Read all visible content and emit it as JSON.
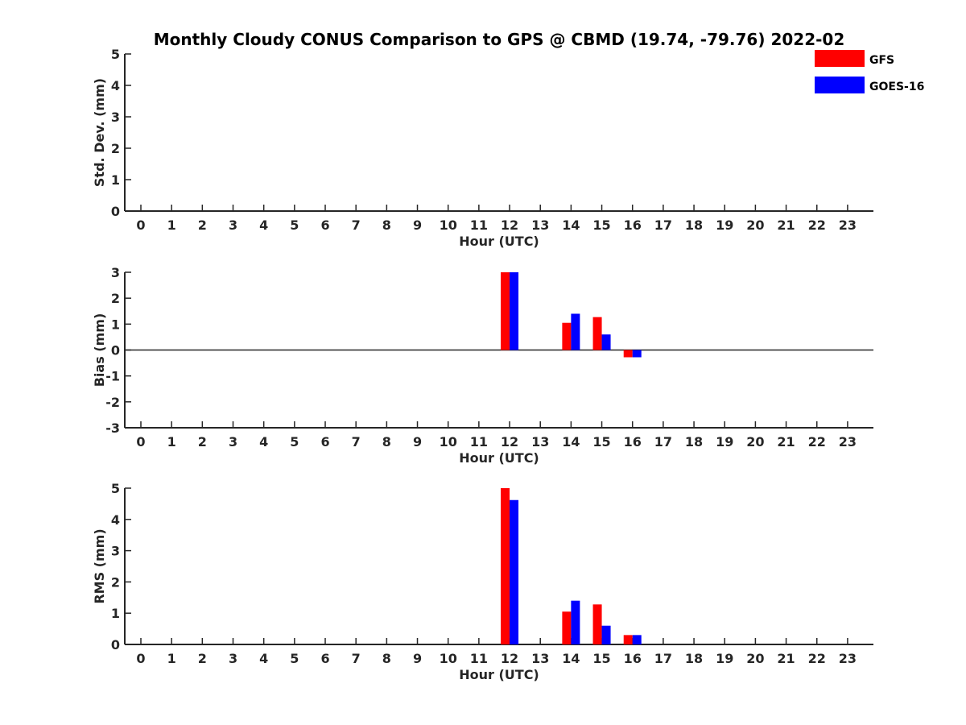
{
  "title": "Monthly Cloudy CONUS Comparison to GPS @ CBMD (19.74, -79.76) 2022-02",
  "legend": [
    {
      "label": "GFS",
      "color": "#ff0000"
    },
    {
      "label": "GOES-16",
      "color": "#0000ff"
    }
  ],
  "chart_data": [
    {
      "type": "bar",
      "title": "Monthly Cloudy CONUS Comparison to GPS @ CBMD (19.74, -79.76) 2022-02",
      "xlabel": "Hour (UTC)",
      "ylabel": "Std. Dev. (mm)",
      "categories": [
        "0",
        "1",
        "2",
        "3",
        "4",
        "5",
        "6",
        "7",
        "8",
        "9",
        "10",
        "11",
        "12",
        "13",
        "14",
        "15",
        "16",
        "17",
        "18",
        "19",
        "20",
        "21",
        "22",
        "23"
      ],
      "ylim": [
        0,
        5
      ],
      "yticks": [
        "0",
        "1",
        "2",
        "3",
        "4",
        "5"
      ],
      "zero_line": false,
      "series": [
        {
          "name": "GFS",
          "color": "#ff0000",
          "values": [
            null,
            null,
            null,
            null,
            null,
            null,
            null,
            null,
            null,
            null,
            null,
            null,
            null,
            null,
            null,
            null,
            null,
            null,
            null,
            null,
            null,
            null,
            null,
            null
          ]
        },
        {
          "name": "GOES-16",
          "color": "#0000ff",
          "values": [
            null,
            null,
            null,
            null,
            null,
            null,
            null,
            null,
            null,
            null,
            null,
            null,
            null,
            null,
            null,
            null,
            null,
            null,
            null,
            null,
            null,
            null,
            null,
            null
          ]
        }
      ],
      "legend": "top-right",
      "grid": false
    },
    {
      "type": "bar",
      "title": "",
      "xlabel": "Hour (UTC)",
      "ylabel": "Bias (mm)",
      "categories": [
        "0",
        "1",
        "2",
        "3",
        "4",
        "5",
        "6",
        "7",
        "8",
        "9",
        "10",
        "11",
        "12",
        "13",
        "14",
        "15",
        "16",
        "17",
        "18",
        "19",
        "20",
        "21",
        "22",
        "23"
      ],
      "ylim": [
        -3,
        3
      ],
      "yticks": [
        "-3",
        "-2",
        "-1",
        "0",
        "1",
        "2",
        "3"
      ],
      "zero_line": true,
      "series": [
        {
          "name": "GFS",
          "color": "#ff0000",
          "values": [
            null,
            null,
            null,
            null,
            null,
            null,
            null,
            null,
            null,
            null,
            null,
            null,
            3.0,
            null,
            1.05,
            1.27,
            -0.28,
            null,
            null,
            null,
            null,
            null,
            null,
            null
          ]
        },
        {
          "name": "GOES-16",
          "color": "#0000ff",
          "values": [
            null,
            null,
            null,
            null,
            null,
            null,
            null,
            null,
            null,
            null,
            null,
            null,
            3.0,
            null,
            1.4,
            0.6,
            -0.28,
            null,
            null,
            null,
            null,
            null,
            null,
            null
          ]
        }
      ],
      "grid": false
    },
    {
      "type": "bar",
      "title": "",
      "xlabel": "Hour (UTC)",
      "ylabel": "RMS (mm)",
      "categories": [
        "0",
        "1",
        "2",
        "3",
        "4",
        "5",
        "6",
        "7",
        "8",
        "9",
        "10",
        "11",
        "12",
        "13",
        "14",
        "15",
        "16",
        "17",
        "18",
        "19",
        "20",
        "21",
        "22",
        "23"
      ],
      "ylim": [
        0,
        5
      ],
      "yticks": [
        "0",
        "1",
        "2",
        "3",
        "4",
        "5"
      ],
      "zero_line": false,
      "series": [
        {
          "name": "GFS",
          "color": "#ff0000",
          "values": [
            null,
            null,
            null,
            null,
            null,
            null,
            null,
            null,
            null,
            null,
            null,
            null,
            5.0,
            null,
            1.05,
            1.28,
            0.3,
            null,
            null,
            null,
            null,
            null,
            null,
            null
          ]
        },
        {
          "name": "GOES-16",
          "color": "#0000ff",
          "values": [
            null,
            null,
            null,
            null,
            null,
            null,
            null,
            null,
            null,
            null,
            null,
            null,
            4.62,
            null,
            1.4,
            0.6,
            0.3,
            null,
            null,
            null,
            null,
            null,
            null,
            null
          ]
        }
      ],
      "grid": false
    }
  ]
}
